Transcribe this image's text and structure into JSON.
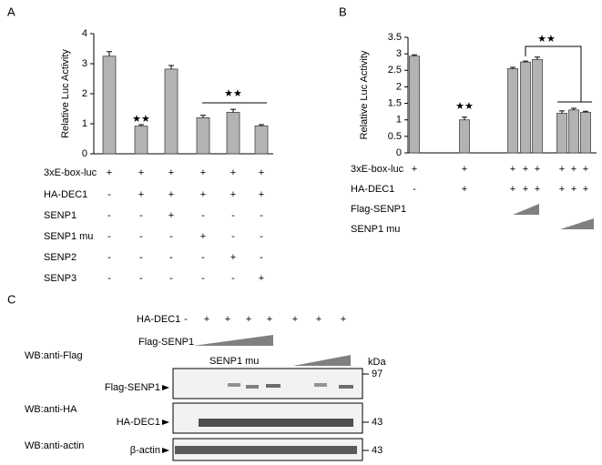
{
  "chart_data": [
    {
      "type": "bar",
      "panel": "A",
      "ylabel": "Relative Luc Activity",
      "values": [
        3.25,
        0.92,
        2.82,
        1.2,
        1.38,
        0.93
      ],
      "errors": [
        0.15,
        0.05,
        0.12,
        0.08,
        0.1,
        0.04
      ],
      "color": "#b3b3b3",
      "ylim": [
        0,
        4
      ],
      "yticks": [
        0,
        1,
        2,
        3,
        4
      ],
      "annotations": [
        "★★",
        "★★"
      ],
      "treatments": [
        {
          "name": "3xE-box-luc",
          "values": [
            "+",
            "+",
            "+",
            "+",
            "+",
            "+"
          ]
        },
        {
          "name": "HA-DEC1",
          "values": [
            "-",
            "+",
            "+",
            "+",
            "+",
            "+"
          ]
        },
        {
          "name": "SENP1",
          "values": [
            "-",
            "-",
            "+",
            "-",
            "-",
            "-"
          ]
        },
        {
          "name": "SENP1 mu",
          "values": [
            "-",
            "-",
            "-",
            "+",
            "-",
            "-"
          ]
        },
        {
          "name": "SENP2",
          "values": [
            "-",
            "-",
            "-",
            "-",
            "+",
            "-"
          ]
        },
        {
          "name": "SENP3",
          "values": [
            "-",
            "-",
            "-",
            "-",
            "-",
            "+"
          ]
        }
      ]
    },
    {
      "type": "bar",
      "panel": "B",
      "ylabel": "Relative Luc Activity",
      "values": [
        2.93,
        1.0,
        2.55,
        2.75,
        2.83,
        1.2,
        1.3,
        1.23
      ],
      "errors": [
        0.04,
        0.08,
        0.04,
        0.03,
        0.07,
        0.07,
        0.05,
        0.03
      ],
      "color": "#b3b3b3",
      "ylim": [
        0,
        3.5
      ],
      "yticks": [
        0,
        0.5,
        1,
        1.5,
        2,
        2.5,
        3,
        3.5
      ],
      "annotations": [
        "★★",
        "★★"
      ],
      "treatments": [
        {
          "name": "3xE-box-luc",
          "values": [
            "+",
            "+",
            "+",
            "+",
            "+",
            "+",
            "+",
            "+"
          ]
        },
        {
          "name": "HA-DEC1",
          "values": [
            "-",
            "+",
            "+",
            "+",
            "+",
            "+",
            "+",
            "+"
          ]
        },
        {
          "name": "Flag-SENP1"
        },
        {
          "name": "SENP1 mu"
        }
      ]
    }
  ],
  "panel_c": {
    "label": "C",
    "ha_dec1": {
      "name": "HA-DEC1",
      "values": [
        "-",
        "+",
        "+",
        "+",
        "+",
        "+",
        "+",
        "+"
      ]
    },
    "flag_senp1": "Flag-SENP1",
    "senp1_mu": "SENP1 mu",
    "kda": "kDa",
    "blots": [
      {
        "wb": "WB:anti-Flag",
        "band": "Flag-SENP1",
        "marker": "97"
      },
      {
        "wb": "WB:anti-HA",
        "band": "HA-DEC1",
        "marker": "43"
      },
      {
        "wb": "WB:anti-actin",
        "band": "β-actin",
        "marker": "43"
      }
    ]
  }
}
